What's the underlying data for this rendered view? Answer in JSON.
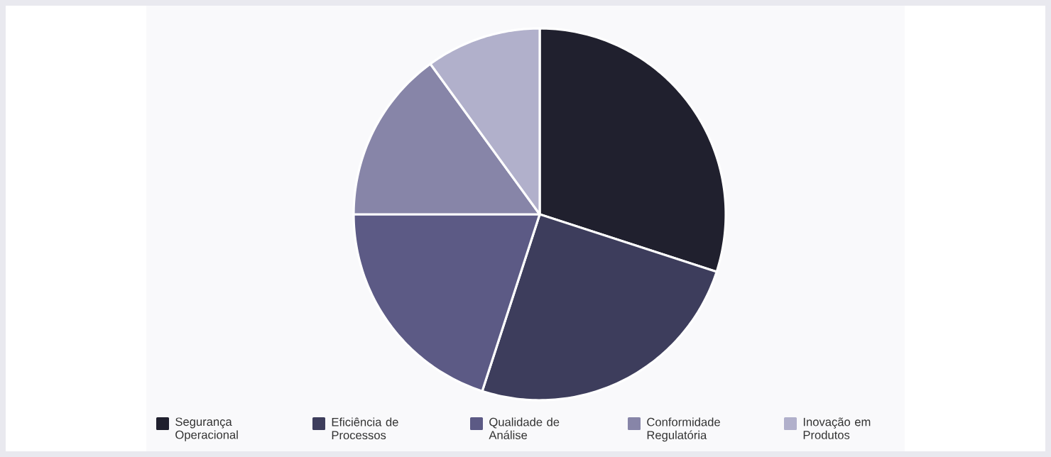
{
  "chart_data": {
    "type": "pie",
    "categories": [
      "Segurança Operacional",
      "Eficiência de Processos",
      "Qualidade de Análise",
      "Conformidade Regulatória",
      "Inovação em Produtos"
    ],
    "values": [
      30,
      25,
      20,
      15,
      10
    ],
    "colors": [
      "#20202e",
      "#3d3d5c",
      "#5c5a85",
      "#8785a8",
      "#b1b0cb"
    ],
    "legend": "bottom"
  }
}
